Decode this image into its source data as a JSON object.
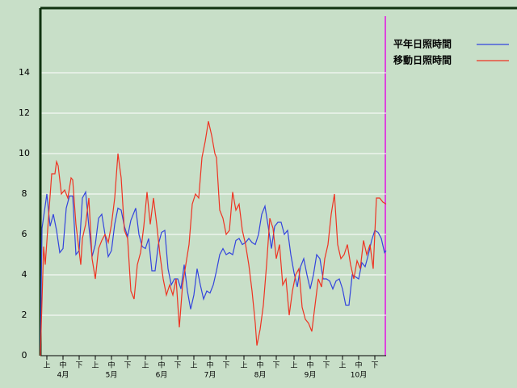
{
  "chart_data": {
    "type": "line",
    "xlim": [
      0,
      214
    ],
    "ylim": [
      0,
      17.2
    ],
    "yticks": [
      0,
      2,
      4,
      6,
      8,
      10,
      12,
      14
    ],
    "xticks": [
      {
        "value": 4,
        "label": "上"
      },
      {
        "value": 14,
        "label": "中"
      },
      {
        "value": 24,
        "label": "下"
      },
      {
        "value": 34,
        "label": "上"
      },
      {
        "value": 44,
        "label": "中"
      },
      {
        "value": 54,
        "label": "下"
      },
      {
        "value": 65,
        "label": "上"
      },
      {
        "value": 75,
        "label": "中"
      },
      {
        "value": 85,
        "label": "下"
      },
      {
        "value": 95,
        "label": "上"
      },
      {
        "value": 105,
        "label": "中"
      },
      {
        "value": 115,
        "label": "下"
      },
      {
        "value": 126,
        "label": "上"
      },
      {
        "value": 136,
        "label": "中"
      },
      {
        "value": 146,
        "label": "下"
      },
      {
        "value": 157,
        "label": "上"
      },
      {
        "value": 167,
        "label": "中"
      },
      {
        "value": 177,
        "label": "下"
      },
      {
        "value": 187,
        "label": "上"
      },
      {
        "value": 197,
        "label": "中"
      },
      {
        "value": 207,
        "label": "下"
      }
    ],
    "month_labels": [
      {
        "value": 14,
        "label": "4月"
      },
      {
        "value": 44,
        "label": "5月"
      },
      {
        "value": 75,
        "label": "6月"
      },
      {
        "value": 105,
        "label": "7月"
      },
      {
        "value": 136,
        "label": "8月"
      },
      {
        "value": 167,
        "label": "9月"
      },
      {
        "value": 197,
        "label": "10月"
      }
    ],
    "grid": true,
    "series": [
      {
        "name": "平年日照時間",
        "color": "#3344dd",
        "x": [
          0,
          1,
          4,
          6,
          8,
          10,
          12,
          14,
          16,
          18,
          20,
          22,
          24,
          26,
          28,
          30,
          32,
          34,
          36,
          38,
          40,
          42,
          44,
          46,
          48,
          50,
          52,
          54,
          56,
          59,
          61,
          63,
          65,
          67,
          69,
          71,
          73,
          75,
          77,
          79,
          81,
          83,
          85,
          87,
          89,
          91,
          93,
          95,
          97,
          99,
          101,
          103,
          105,
          107,
          109,
          111,
          113,
          115,
          117,
          119,
          121,
          123,
          125,
          127,
          129,
          131,
          133,
          135,
          137,
          139,
          141,
          143,
          145,
          147,
          149,
          151,
          153,
          155,
          157,
          159,
          161,
          163,
          165,
          167,
          169,
          171,
          173,
          175,
          177,
          179,
          181,
          183,
          185,
          187,
          189,
          191,
          193,
          195,
          197,
          199,
          201,
          203,
          205,
          207,
          209,
          211,
          213,
          214
        ],
        "values": [
          0,
          6.3,
          8.0,
          6.4,
          7.0,
          6.2,
          5.1,
          5.3,
          7.3,
          7.9,
          7.9,
          5.0,
          5.2,
          7.8,
          8.1,
          6.4,
          4.9,
          5.5,
          6.8,
          7.0,
          6.0,
          4.9,
          5.2,
          6.5,
          7.3,
          7.2,
          6.4,
          5.9,
          6.7,
          7.3,
          6.0,
          5.4,
          5.3,
          5.8,
          4.2,
          4.2,
          5.5,
          6.1,
          6.2,
          4.3,
          3.5,
          3.8,
          3.8,
          3.3,
          4.5,
          3.2,
          2.3,
          3.0,
          4.3,
          3.5,
          2.8,
          3.2,
          3.1,
          3.5,
          4.2,
          5.0,
          5.3,
          5.0,
          5.1,
          5.0,
          5.7,
          5.8,
          5.5,
          5.6,
          5.8,
          5.6,
          5.5,
          6.0,
          7.0,
          7.4,
          6.4,
          5.3,
          6.4,
          6.6,
          6.6,
          6.0,
          6.2,
          5.0,
          4.1,
          3.4,
          4.4,
          4.8,
          4.0,
          3.3,
          4.0,
          5.0,
          4.8,
          3.8,
          3.8,
          3.7,
          3.3,
          3.7,
          3.8,
          3.3,
          2.5,
          2.5,
          4.0,
          3.9,
          3.8,
          4.6,
          4.4,
          5.0,
          5.7,
          6.2,
          6.1,
          5.8,
          5.1,
          5.2
        ]
      },
      {
        "name": "移動日照時間",
        "color": "#ee3322",
        "x": [
          0,
          2,
          3,
          5,
          7,
          9,
          10,
          11,
          13,
          15,
          17,
          19,
          20,
          22,
          25,
          26,
          28,
          30,
          32,
          34,
          36,
          38,
          40,
          42,
          44,
          46,
          48,
          50,
          52,
          54,
          56,
          58,
          60,
          62,
          64,
          66,
          68,
          70,
          72,
          74,
          76,
          78,
          80,
          82,
          84,
          86,
          88,
          90,
          92,
          94,
          96,
          98,
          100,
          102,
          104,
          106,
          108,
          109,
          111,
          113,
          115,
          117,
          119,
          121,
          123,
          125,
          127,
          129,
          131,
          133,
          134,
          136,
          138,
          140,
          142,
          144,
          146,
          148,
          150,
          152,
          154,
          156,
          158,
          160,
          162,
          164,
          166,
          168,
          170,
          172,
          174,
          176,
          178,
          180,
          182,
          184,
          186,
          188,
          190,
          192,
          194,
          196,
          198,
          200,
          202,
          204,
          206,
          208,
          210,
          212,
          214
        ],
        "values": [
          0,
          5.4,
          4.5,
          6.8,
          9.0,
          9.0,
          9.6,
          9.4,
          8.0,
          8.2,
          7.8,
          8.8,
          8.7,
          6.5,
          4.5,
          5.8,
          6.5,
          7.8,
          4.8,
          3.8,
          5.3,
          5.7,
          6.0,
          5.6,
          6.5,
          7.8,
          10.0,
          8.8,
          6.2,
          5.8,
          3.2,
          2.8,
          4.5,
          5.1,
          6.4,
          8.1,
          6.5,
          7.8,
          6.5,
          5.0,
          3.8,
          3.0,
          3.5,
          3.0,
          3.8,
          1.4,
          3.5,
          4.5,
          5.5,
          7.5,
          8.0,
          7.8,
          9.8,
          10.6,
          11.6,
          10.9,
          10.0,
          9.8,
          7.2,
          6.8,
          6.0,
          6.2,
          8.1,
          7.2,
          7.5,
          6.2,
          5.5,
          4.5,
          3.2,
          1.6,
          0.5,
          1.3,
          2.5,
          4.5,
          6.8,
          6.3,
          4.8,
          5.5,
          3.5,
          3.8,
          2.0,
          3.2,
          4.0,
          4.3,
          2.4,
          1.8,
          1.6,
          1.2,
          2.5,
          3.8,
          3.4,
          4.8,
          5.5,
          7.0,
          8.0,
          5.5,
          4.8,
          5.0,
          5.5,
          4.5,
          3.8,
          4.7,
          4.3,
          5.7,
          5.0,
          5.5,
          4.3,
          7.8,
          7.8,
          7.6,
          7.5
        ]
      }
    ]
  }
}
